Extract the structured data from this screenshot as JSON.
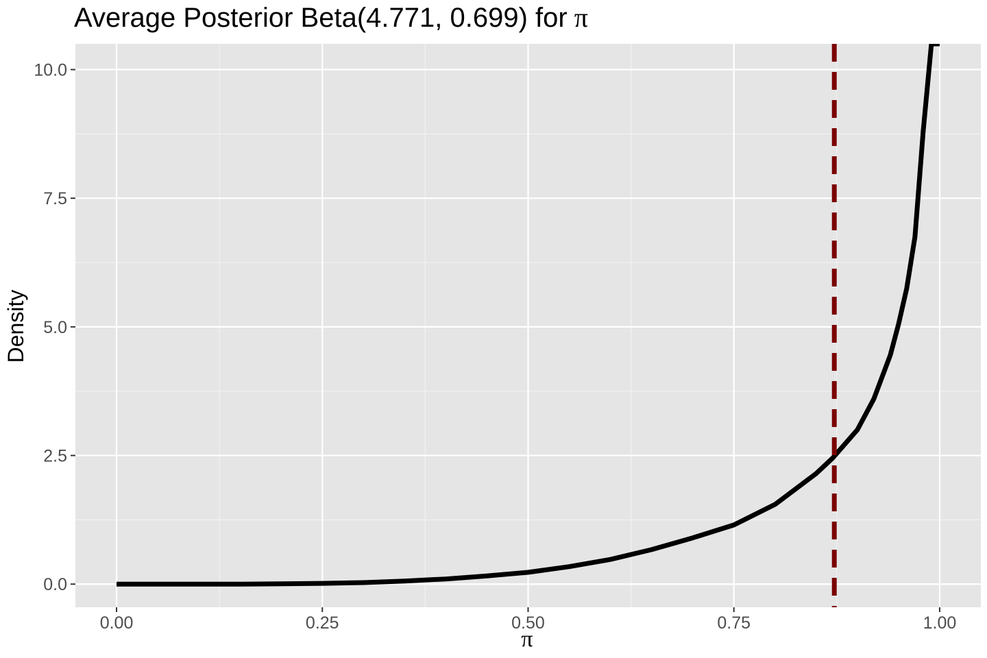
{
  "chart_data": {
    "type": "line",
    "title": "Average Posterior Beta(4.771, 0.699) for",
    "title_symbol": "π",
    "xlabel": "π",
    "ylabel": "Density",
    "xlim": [
      -0.05,
      1.05
    ],
    "ylim": [
      -0.45,
      10.5
    ],
    "x_ticks": [
      0,
      0.25,
      0.5,
      0.75,
      1.0
    ],
    "x_tick_labels": [
      "0.00",
      "0.25",
      "0.50",
      "0.75",
      "1.00"
    ],
    "y_ticks": [
      0,
      2.5,
      5.0,
      7.5,
      10.0
    ],
    "y_tick_labels": [
      "0.0",
      "2.5",
      "5.0",
      "7.5",
      "10.0"
    ],
    "grid": true,
    "series": [
      {
        "color": "#000000",
        "x": [
          0.0,
          0.05,
          0.1,
          0.15,
          0.2,
          0.25,
          0.3,
          0.35,
          0.4,
          0.45,
          0.5,
          0.55,
          0.6,
          0.65,
          0.7,
          0.75,
          0.8,
          0.85,
          0.87,
          0.9,
          0.92,
          0.94,
          0.95,
          0.96,
          0.97,
          0.98,
          0.99,
          1.0
        ],
        "y": [
          0.0,
          0.0,
          0.0,
          0.0,
          0.005,
          0.015,
          0.03,
          0.06,
          0.1,
          0.16,
          0.23,
          0.34,
          0.48,
          0.67,
          0.9,
          1.15,
          1.55,
          2.15,
          2.45,
          3.0,
          3.6,
          4.45,
          5.05,
          5.75,
          6.75,
          8.8,
          10.5,
          10.5
        ]
      }
    ],
    "reference_lines": [
      {
        "axis": "x",
        "value": 0.872,
        "style": "dashed",
        "color": "#7a0000"
      }
    ],
    "colors": {
      "panel_background": "#e5e5e5",
      "grid_major": "#ffffff",
      "grid_minor": "#f2f2f2",
      "curve": "#000000",
      "mean_line": "#7a0000"
    }
  }
}
